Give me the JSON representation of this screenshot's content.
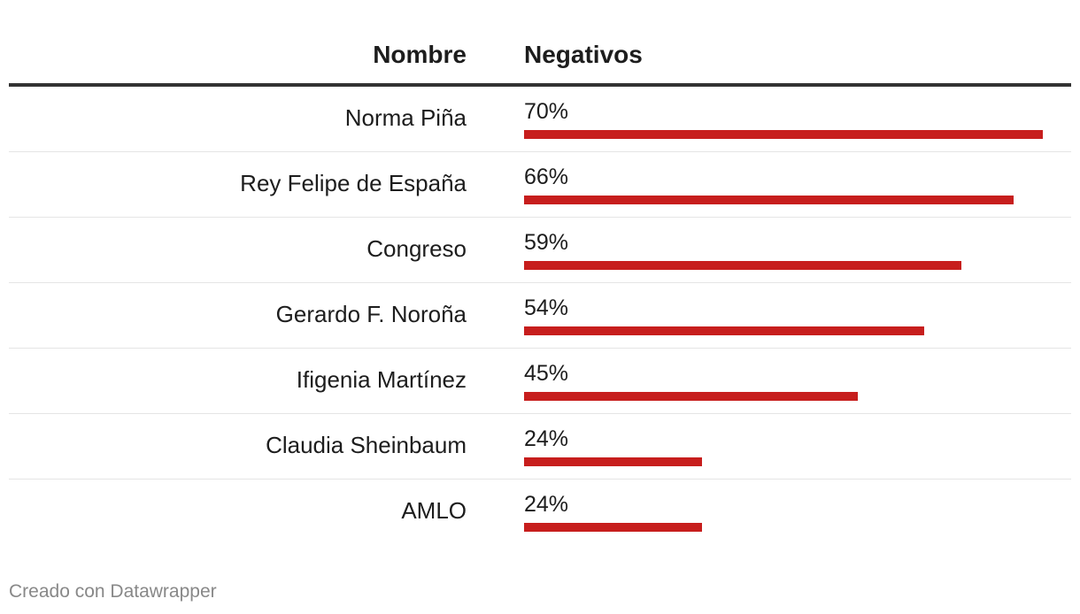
{
  "chart_data": {
    "type": "table",
    "columns": [
      "Nombre",
      "Negativos"
    ],
    "rows": [
      {
        "name": "Norma Piña",
        "value": 70,
        "label": "70%"
      },
      {
        "name": "Rey Felipe de España",
        "value": 66,
        "label": "66%"
      },
      {
        "name": "Congreso",
        "value": 59,
        "label": "59%"
      },
      {
        "name": "Gerardo F. Noroña",
        "value": 54,
        "label": "54%"
      },
      {
        "name": "Ifigenia Martínez",
        "value": 45,
        "label": "45%"
      },
      {
        "name": "Claudia Sheinbaum",
        "value": 24,
        "label": "24%"
      },
      {
        "name": "AMLO",
        "value": 24,
        "label": "24%"
      }
    ],
    "bar_max": 70,
    "bar_color": "#c71e1d"
  },
  "footer": {
    "credit": "Creado con Datawrapper"
  }
}
